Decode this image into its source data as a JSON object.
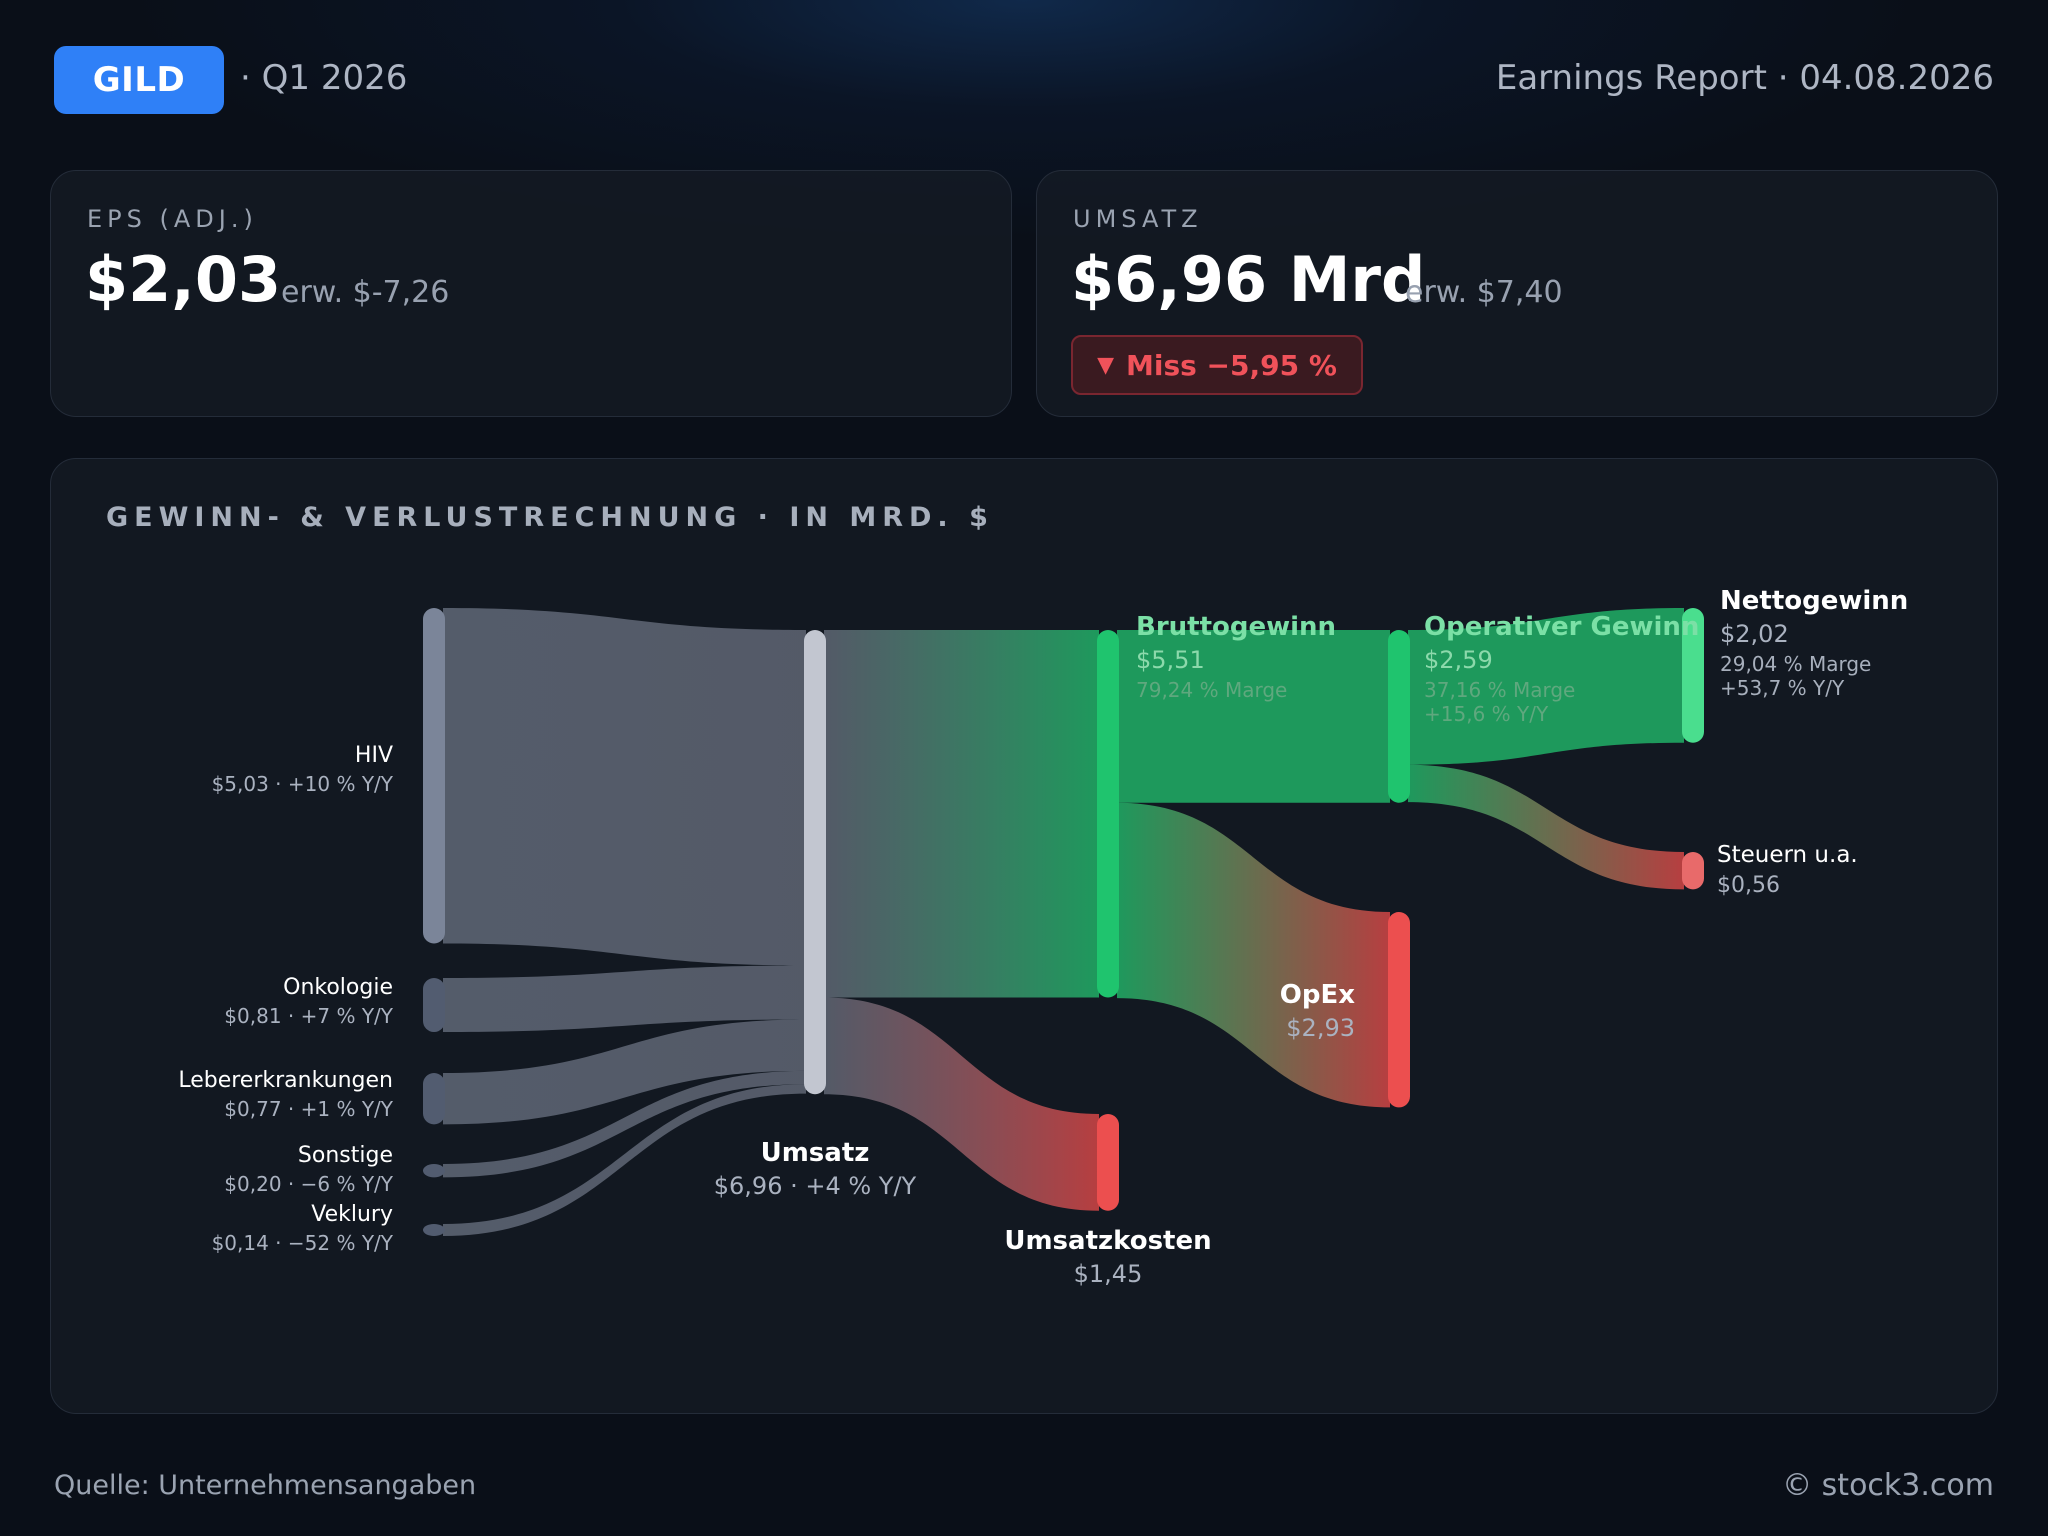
{
  "header": {
    "ticker": "GILD",
    "quarter": "· Q1 2026",
    "report": "Earnings Report · 04.08.2026"
  },
  "eps": {
    "label": "EPS (ADJ.)",
    "value": "$2,03",
    "estimate": "erw. $-7,26"
  },
  "revenue": {
    "label": "UMSATZ",
    "value": "$6,96 Mrd",
    "estimate": "erw. $7,40",
    "miss": "Miss −5,95 %",
    "miss_color": "#f0525a"
  },
  "chart_title": "GEWINN- & VERLUSTRECHNUNG · IN MRD. $",
  "chart_data": {
    "type": "sankey",
    "unit": "Mrd. $",
    "nodes": [
      {
        "id": "hiv",
        "name": "HIV",
        "value": 5.03,
        "sub": "$5,03 · +10 % Y/Y",
        "color": "#7b8599"
      },
      {
        "id": "onko",
        "name": "Onkologie",
        "value": 0.81,
        "sub": "$0,81 · +7 % Y/Y",
        "color": "#525c70"
      },
      {
        "id": "leber",
        "name": "Lebererkrankungen",
        "value": 0.77,
        "sub": "$0,77 · +1 % Y/Y",
        "color": "#525c70"
      },
      {
        "id": "sonst",
        "name": "Sonstige",
        "value": 0.2,
        "sub": "$0,20 · −6 % Y/Y",
        "color": "#525c70"
      },
      {
        "id": "vekl",
        "name": "Veklury",
        "value": 0.14,
        "sub": "$0,14 · −52 % Y/Y",
        "color": "#525c70"
      },
      {
        "id": "umsatz",
        "name": "Umsatz",
        "value": 6.96,
        "sub": "$6,96 · +4 % Y/Y",
        "color": "#c2c6d0"
      },
      {
        "id": "brutto",
        "name": "Bruttogewinn",
        "value": 5.51,
        "sub": "$5,51",
        "sub2": "79,24 % Marge",
        "color": "#1fc46e"
      },
      {
        "id": "uk",
        "name": "Umsatzkosten",
        "value": 1.45,
        "sub": "$1,45",
        "color": "#ec4f4f"
      },
      {
        "id": "op",
        "name": "Operativer Gewinn",
        "value": 2.59,
        "sub": "$2,59",
        "sub2": "37,16 % Marge",
        "sub3": "+15,6 % Y/Y",
        "color": "#1fc46e"
      },
      {
        "id": "opex",
        "name": "OpEx",
        "value": 2.93,
        "sub": "$2,93",
        "color": "#ec4f4f"
      },
      {
        "id": "netto",
        "name": "Nettogewinn",
        "value": 2.02,
        "sub": "$2,02",
        "sub2": "29,04 % Marge",
        "sub3": "+53,7 % Y/Y",
        "color": "#4ade8e"
      },
      {
        "id": "steuern",
        "name": "Steuern u.a.",
        "value": 0.56,
        "sub": "$0,56",
        "color": "#e86a6a"
      }
    ],
    "links": [
      {
        "source": "hiv",
        "target": "umsatz",
        "value": 5.03
      },
      {
        "source": "onko",
        "target": "umsatz",
        "value": 0.81
      },
      {
        "source": "leber",
        "target": "umsatz",
        "value": 0.77
      },
      {
        "source": "sonst",
        "target": "umsatz",
        "value": 0.2
      },
      {
        "source": "vekl",
        "target": "umsatz",
        "value": 0.14
      },
      {
        "source": "umsatz",
        "target": "brutto",
        "value": 5.51
      },
      {
        "source": "umsatz",
        "target": "uk",
        "value": 1.45
      },
      {
        "source": "brutto",
        "target": "op",
        "value": 2.59
      },
      {
        "source": "brutto",
        "target": "opex",
        "value": 2.93
      },
      {
        "source": "op",
        "target": "netto",
        "value": 2.02
      },
      {
        "source": "op",
        "target": "steuern",
        "value": 0.56
      }
    ]
  },
  "footer": {
    "source": "Quelle: Unternehmensangaben",
    "copyright": "© stock3.com"
  }
}
